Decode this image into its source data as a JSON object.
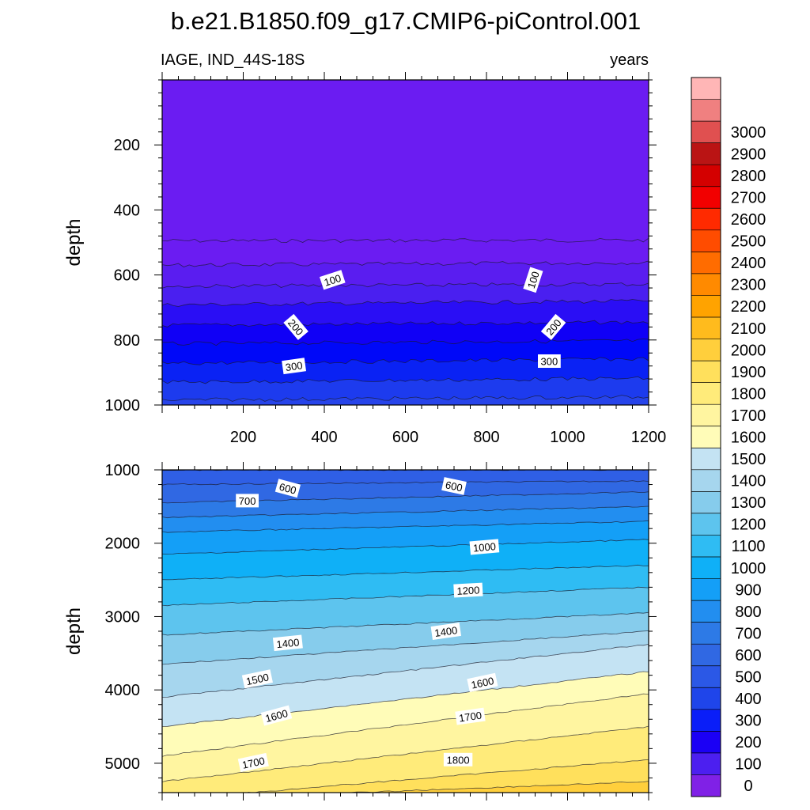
{
  "chart_data": {
    "type": "contour",
    "title": "b.e21.B1850.f09_g17.CMIP6-piControl.001",
    "variable": "IAGE, IND_44S-18S",
    "units": "years",
    "x": {
      "min": 0,
      "max": 1200,
      "ticks": [
        200,
        400,
        600,
        800,
        1000,
        1200
      ]
    },
    "colorbar": {
      "levels": [
        0,
        100,
        200,
        300,
        400,
        500,
        600,
        700,
        800,
        900,
        1000,
        1100,
        1200,
        1300,
        1400,
        1500,
        1600,
        1700,
        1800,
        1900,
        2000,
        2100,
        2200,
        2300,
        2400,
        2500,
        2600,
        2700,
        2800,
        2900,
        3000
      ],
      "labels": [
        "0",
        "100",
        "200",
        "300",
        "400",
        "500",
        "600",
        "700",
        "800",
        "900",
        "1000",
        "1100",
        "1200",
        "1300",
        "1400",
        "1500",
        "1600",
        "1700",
        "1800",
        "1900",
        "2000",
        "2100",
        "2200",
        "2300",
        "2400",
        "2500",
        "2600",
        "2700",
        "2800",
        "2900",
        "3000"
      ],
      "colors": [
        "#8021e6",
        "#4c1ff0",
        "#1b00f5",
        "#0a1ef8",
        "#1f45ea",
        "#2b58e6",
        "#3068e3",
        "#2d7ae6",
        "#228ef0",
        "#149ff7",
        "#0fb0f7",
        "#2fbcf3",
        "#5dc4ee",
        "#86ccec",
        "#a6d6ee",
        "#c4e3f3",
        "#fffcb8",
        "#fff5a0",
        "#ffeb7a",
        "#ffe05c",
        "#ffcf3c",
        "#ffbb1d",
        "#ffa300",
        "#ff8a00",
        "#ff6c00",
        "#ff4c00",
        "#ff2a00",
        "#f20000",
        "#d40000",
        "#ba1414",
        "#e05050",
        "#f08080",
        "#ffb6b6"
      ]
    },
    "panels": [
      {
        "name": "upper",
        "ylabel": "depth",
        "ylim": [
          0,
          1000
        ],
        "yticks": [
          200,
          400,
          600,
          800,
          1000
        ],
        "fill_color": "#6b1cf2",
        "contours": [
          {
            "level": 0,
            "depth_start": 495,
            "depth_end": 493,
            "color": "#6b1cf2"
          },
          {
            "level": 50,
            "depth_start": 570,
            "depth_end": 562,
            "color": "#5a1df0"
          },
          {
            "level": 100,
            "depth_start": 635,
            "depth_end": 628,
            "color": "#4a1ff0"
          },
          {
            "level": 150,
            "depth_start": 692,
            "depth_end": 680,
            "color": "#2a0ef5"
          },
          {
            "level": 200,
            "depth_start": 755,
            "depth_end": 745,
            "color": "#1000f6"
          },
          {
            "level": 250,
            "depth_start": 812,
            "depth_end": 802,
            "color": "#0008f8"
          },
          {
            "level": 300,
            "depth_start": 872,
            "depth_end": 858,
            "color": "#0a22f4"
          },
          {
            "level": 350,
            "depth_start": 930,
            "depth_end": 918,
            "color": "#1d3bee"
          },
          {
            "level": 400,
            "depth_start": 985,
            "depth_end": 975,
            "color": "#2744ea"
          }
        ],
        "contour_labels": [
          {
            "text": "100",
            "x": 420,
            "depth": 615,
            "angle": -18
          },
          {
            "text": "100",
            "x": 915,
            "depth": 615,
            "angle": -72
          },
          {
            "text": "200",
            "x": 330,
            "depth": 760,
            "angle": 50
          },
          {
            "text": "200",
            "x": 965,
            "depth": 760,
            "angle": -50
          },
          {
            "text": "300",
            "x": 325,
            "depth": 880,
            "angle": -8
          },
          {
            "text": "300",
            "x": 955,
            "depth": 865,
            "angle": 0
          }
        ]
      },
      {
        "name": "lower",
        "ylabel": "depth",
        "ylim": [
          1000,
          5400
        ],
        "yticks": [
          1000,
          2000,
          3000,
          4000,
          5000
        ],
        "contours": [
          {
            "level": 500,
            "depth_start": 1000,
            "depth_end": 1000,
            "color": "#2f5fe5"
          },
          {
            "level": 600,
            "depth_start": 1200,
            "depth_end": 1150,
            "color": "#3068e3"
          },
          {
            "level": 700,
            "depth_start": 1450,
            "depth_end": 1300,
            "color": "#2d7ae6"
          },
          {
            "level": 800,
            "depth_start": 1650,
            "depth_end": 1500,
            "color": "#228ef0"
          },
          {
            "level": 900,
            "depth_start": 1850,
            "depth_end": 1700,
            "color": "#149ff7"
          },
          {
            "level": 1000,
            "depth_start": 2150,
            "depth_end": 1950,
            "color": "#0fb0f7"
          },
          {
            "level": 1100,
            "depth_start": 2500,
            "depth_end": 2300,
            "color": "#2fbcf3"
          },
          {
            "level": 1200,
            "depth_start": 2850,
            "depth_end": 2600,
            "color": "#5dc4ee"
          },
          {
            "level": 1300,
            "depth_start": 3250,
            "depth_end": 2950,
            "color": "#86ccec"
          },
          {
            "level": 1400,
            "depth_start": 3650,
            "depth_end": 3200,
            "color": "#a6d6ee"
          },
          {
            "level": 1500,
            "depth_start": 4100,
            "depth_end": 3380,
            "color": "#c4e3f3"
          },
          {
            "level": 1600,
            "depth_start": 4500,
            "depth_end": 3750,
            "color": "#fffcb8"
          },
          {
            "level": 1700,
            "depth_start": 4900,
            "depth_end": 4050,
            "color": "#fff5a0"
          },
          {
            "level": 1800,
            "depth_start": 5250,
            "depth_end": 4500,
            "color": "#ffeb7a"
          },
          {
            "level": 1900,
            "depth_start": 5500,
            "depth_end": 4950,
            "color": "#ffe05c"
          },
          {
            "level": 2000,
            "depth_start": 5500,
            "depth_end": 5250,
            "color": "#ffcf3c"
          }
        ],
        "contour_labels": [
          {
            "text": "600",
            "x": 310,
            "depth": 1250,
            "angle": 15
          },
          {
            "text": "600",
            "x": 720,
            "depth": 1220,
            "angle": 12
          },
          {
            "text": "700",
            "x": 210,
            "depth": 1420,
            "angle": 0
          },
          {
            "text": "1000",
            "x": 795,
            "depth": 2050,
            "angle": -5
          },
          {
            "text": "1200",
            "x": 755,
            "depth": 2640,
            "angle": -3
          },
          {
            "text": "1400",
            "x": 310,
            "depth": 3360,
            "angle": -6
          },
          {
            "text": "1400",
            "x": 700,
            "depth": 3200,
            "angle": -8
          },
          {
            "text": "1500",
            "x": 235,
            "depth": 3850,
            "angle": -12
          },
          {
            "text": "1600",
            "x": 790,
            "depth": 3900,
            "angle": -12
          },
          {
            "text": "1600",
            "x": 282,
            "depth": 4350,
            "angle": -15
          },
          {
            "text": "1700",
            "x": 760,
            "depth": 4360,
            "angle": -8
          },
          {
            "text": "1700",
            "x": 225,
            "depth": 4990,
            "angle": -12
          },
          {
            "text": "1800",
            "x": 730,
            "depth": 4950,
            "angle": 0
          }
        ]
      }
    ]
  }
}
